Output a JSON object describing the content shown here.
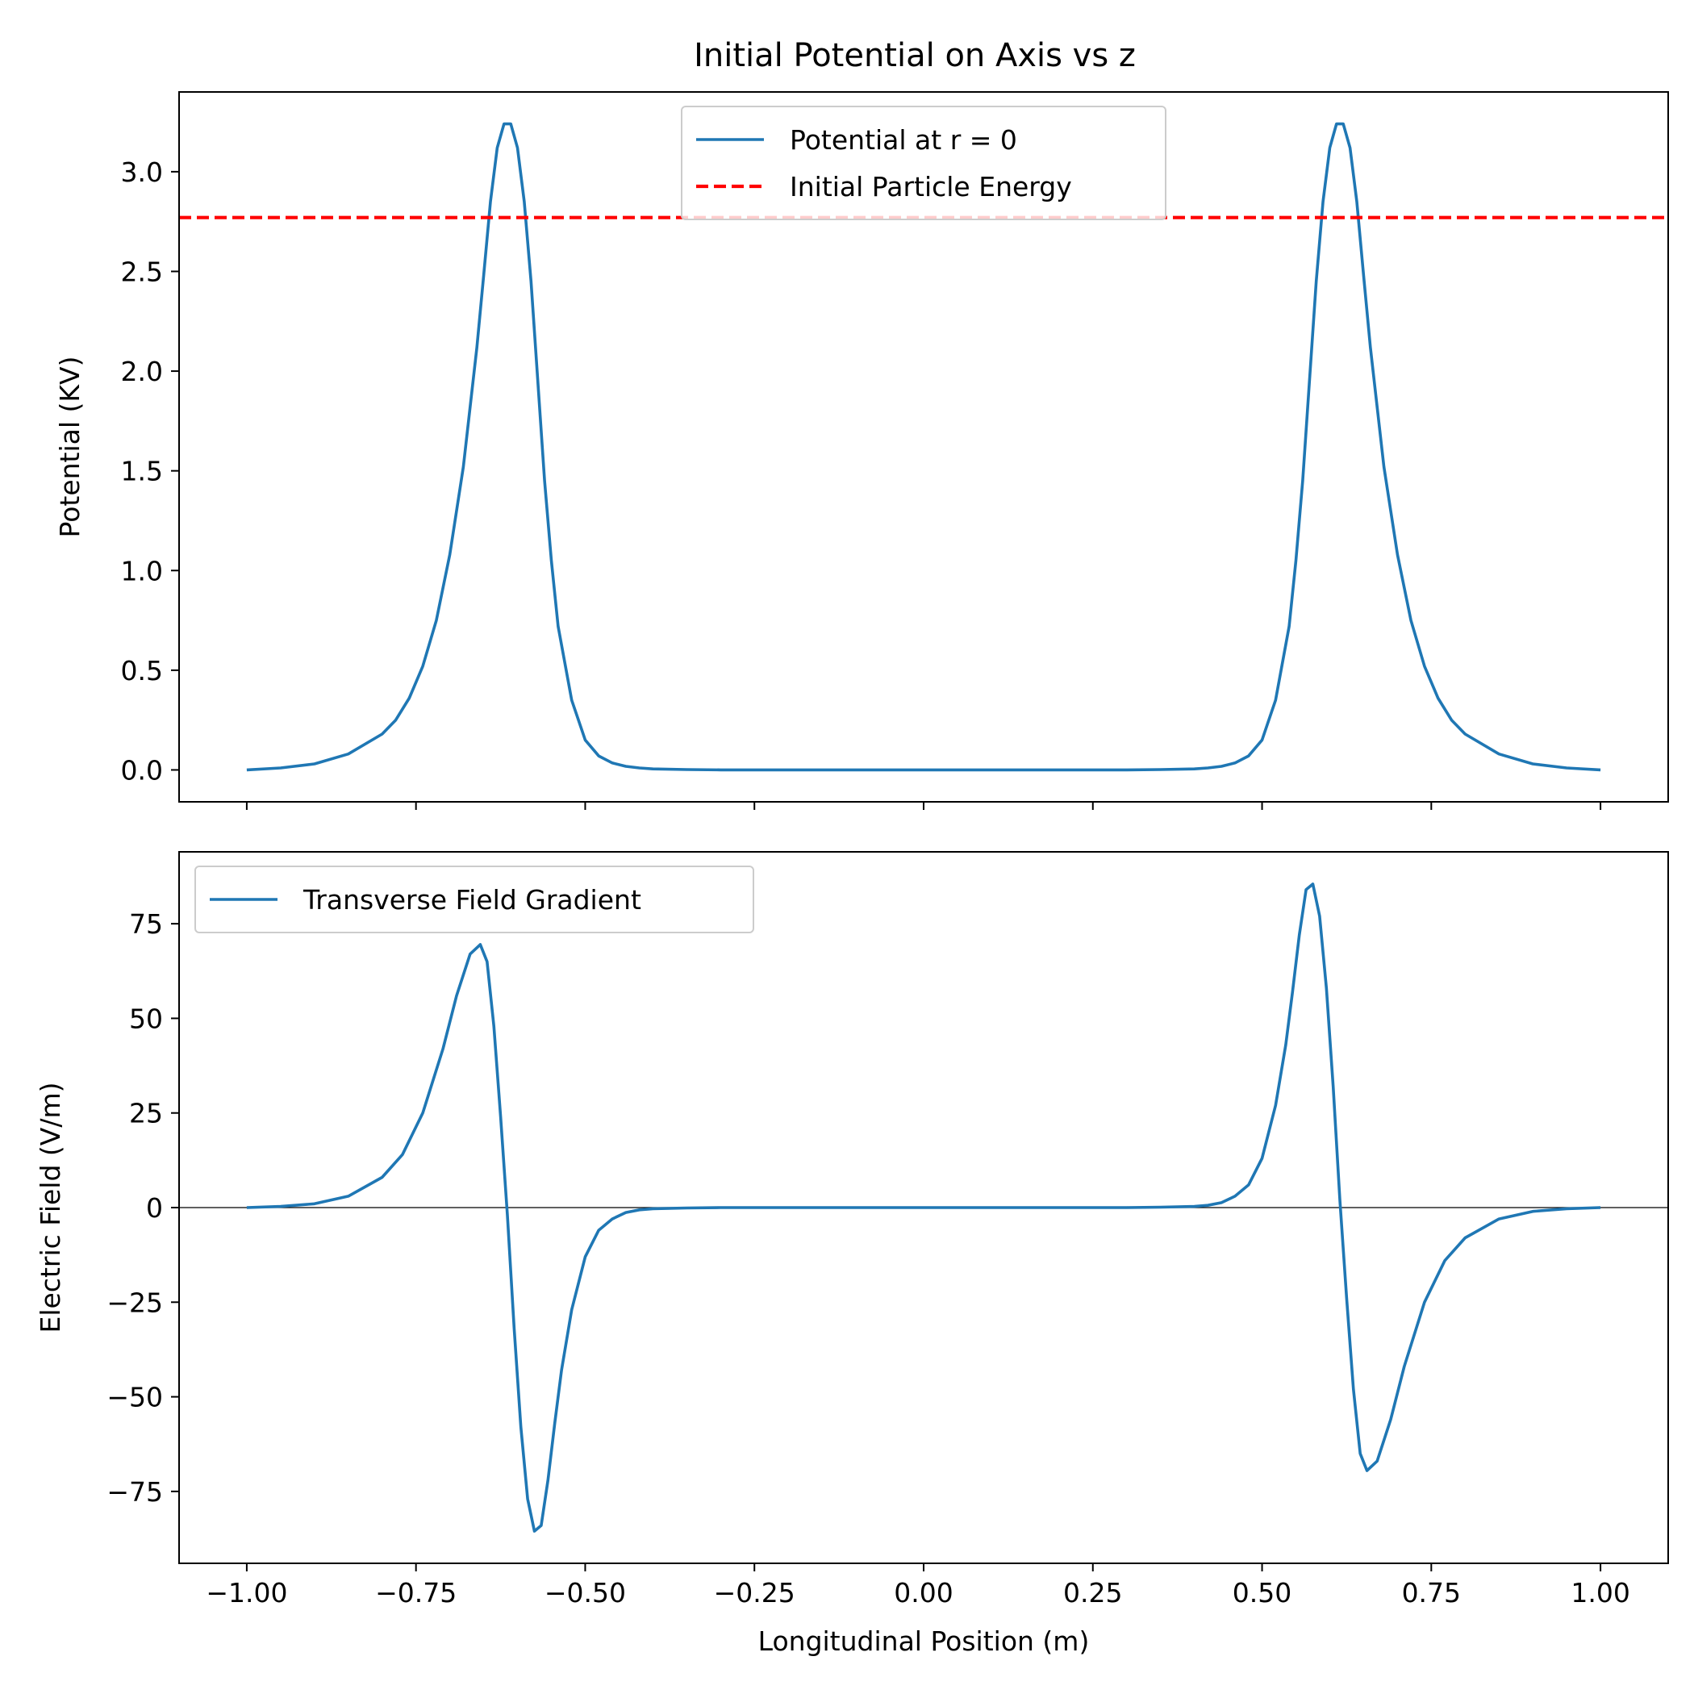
{
  "figure": {
    "title": "Initial Potential on Axis vs z"
  },
  "chart_data": [
    {
      "type": "line",
      "panel": "top",
      "title": "Initial Potential on Axis vs z",
      "xlabel": "",
      "ylabel": "Potential (KV)",
      "xlim": [
        -1.1,
        1.1
      ],
      "ylim": [
        -0.16,
        3.4
      ],
      "xticks": [
        -1.0,
        -0.75,
        -0.5,
        -0.25,
        0.0,
        0.25,
        0.5,
        0.75,
        1.0
      ],
      "xtick_labels_visible": false,
      "yticks": [
        0.0,
        0.5,
        1.0,
        1.5,
        2.0,
        2.5,
        3.0
      ],
      "ytick_labels": [
        "0.0",
        "0.5",
        "1.0",
        "1.5",
        "2.0",
        "2.5",
        "3.0"
      ],
      "grid": false,
      "legend": "top-center",
      "series": [
        {
          "name": "Potential at r = 0",
          "color": "#1f77b4",
          "style": "solid",
          "x": [
            -1.0,
            -0.95,
            -0.9,
            -0.85,
            -0.8,
            -0.78,
            -0.76,
            -0.74,
            -0.72,
            -0.7,
            -0.68,
            -0.66,
            -0.65,
            -0.64,
            -0.63,
            -0.62,
            -0.61,
            -0.6,
            -0.59,
            -0.58,
            -0.57,
            -0.56,
            -0.55,
            -0.54,
            -0.52,
            -0.5,
            -0.48,
            -0.46,
            -0.44,
            -0.42,
            -0.4,
            -0.35,
            -0.3,
            -0.2,
            -0.1,
            0.0,
            0.1,
            0.2,
            0.3,
            0.35,
            0.4,
            0.42,
            0.44,
            0.46,
            0.48,
            0.5,
            0.52,
            0.54,
            0.55,
            0.56,
            0.57,
            0.58,
            0.59,
            0.6,
            0.61,
            0.62,
            0.63,
            0.64,
            0.65,
            0.66,
            0.68,
            0.7,
            0.72,
            0.74,
            0.76,
            0.78,
            0.8,
            0.85,
            0.9,
            0.95,
            1.0
          ],
          "values": [
            0.0,
            0.01,
            0.03,
            0.08,
            0.18,
            0.25,
            0.36,
            0.52,
            0.75,
            1.08,
            1.52,
            2.12,
            2.48,
            2.85,
            3.12,
            3.24,
            3.24,
            3.12,
            2.85,
            2.45,
            1.95,
            1.45,
            1.05,
            0.72,
            0.35,
            0.15,
            0.07,
            0.035,
            0.018,
            0.01,
            0.005,
            0.002,
            0.0,
            0.0,
            0.0,
            0.0,
            0.0,
            0.0,
            0.0,
            0.002,
            0.005,
            0.01,
            0.018,
            0.035,
            0.07,
            0.15,
            0.35,
            0.72,
            1.05,
            1.45,
            1.95,
            2.45,
            2.85,
            3.12,
            3.24,
            3.24,
            3.12,
            2.85,
            2.48,
            2.12,
            1.52,
            1.08,
            0.75,
            0.52,
            0.36,
            0.25,
            0.18,
            0.08,
            0.03,
            0.01,
            0.0
          ]
        },
        {
          "name": "Initial Particle Energy",
          "color": "#ff0000",
          "style": "dashed",
          "x": [
            -1.1,
            1.1
          ],
          "values": [
            2.77,
            2.77
          ]
        }
      ]
    },
    {
      "type": "line",
      "panel": "bottom",
      "title": "",
      "xlabel": "Longitudinal Position (m)",
      "ylabel": "Electric Field (V/m)",
      "xlim": [
        -1.1,
        1.1
      ],
      "ylim": [
        -94,
        94
      ],
      "xticks": [
        -1.0,
        -0.75,
        -0.5,
        -0.25,
        0.0,
        0.25,
        0.5,
        0.75,
        1.0
      ],
      "xtick_labels": [
        "−1.00",
        "−0.75",
        "−0.50",
        "−0.25",
        "0.00",
        "0.25",
        "0.50",
        "0.75",
        "1.00"
      ],
      "yticks": [
        -75,
        -50,
        -25,
        0,
        25,
        50,
        75
      ],
      "ytick_labels": [
        "−75",
        "−50",
        "−25",
        "0",
        "25",
        "50",
        "75"
      ],
      "grid": false,
      "legend": "top-left",
      "zero_line": 0,
      "series": [
        {
          "name": "Transverse Field Gradient",
          "color": "#1f77b4",
          "style": "solid",
          "x": [
            -1.0,
            -0.95,
            -0.9,
            -0.85,
            -0.8,
            -0.77,
            -0.74,
            -0.71,
            -0.69,
            -0.67,
            -0.655,
            -0.645,
            -0.635,
            -0.625,
            -0.615,
            -0.605,
            -0.595,
            -0.585,
            -0.575,
            -0.565,
            -0.555,
            -0.545,
            -0.535,
            -0.52,
            -0.5,
            -0.48,
            -0.46,
            -0.44,
            -0.42,
            -0.4,
            -0.35,
            -0.3,
            -0.2,
            0.0,
            0.2,
            0.3,
            0.35,
            0.4,
            0.42,
            0.44,
            0.46,
            0.48,
            0.5,
            0.52,
            0.535,
            0.545,
            0.555,
            0.565,
            0.575,
            0.585,
            0.595,
            0.605,
            0.615,
            0.625,
            0.635,
            0.645,
            0.655,
            0.67,
            0.69,
            0.71,
            0.74,
            0.77,
            0.8,
            0.85,
            0.9,
            0.95,
            1.0
          ],
          "values": [
            0.0,
            0.3,
            1.0,
            3.0,
            8.0,
            14.0,
            25.0,
            42.0,
            56.0,
            67.0,
            69.5,
            65.0,
            48.0,
            24.0,
            -2.0,
            -32.0,
            -58.0,
            -77.0,
            -85.5,
            -84.0,
            -72.0,
            -57.0,
            -43.0,
            -27.0,
            -13.0,
            -6.0,
            -3.0,
            -1.3,
            -0.6,
            -0.3,
            -0.1,
            0.0,
            0.0,
            0.0,
            0.0,
            0.0,
            0.1,
            0.3,
            0.6,
            1.3,
            3.0,
            6.0,
            13.0,
            27.0,
            43.0,
            57.0,
            72.0,
            84.0,
            85.5,
            77.0,
            58.0,
            32.0,
            2.0,
            -24.0,
            -48.0,
            -65.0,
            -69.5,
            -67.0,
            -56.0,
            -42.0,
            -25.0,
            -14.0,
            -8.0,
            -3.0,
            -1.0,
            -0.3,
            0.0
          ]
        }
      ]
    }
  ]
}
